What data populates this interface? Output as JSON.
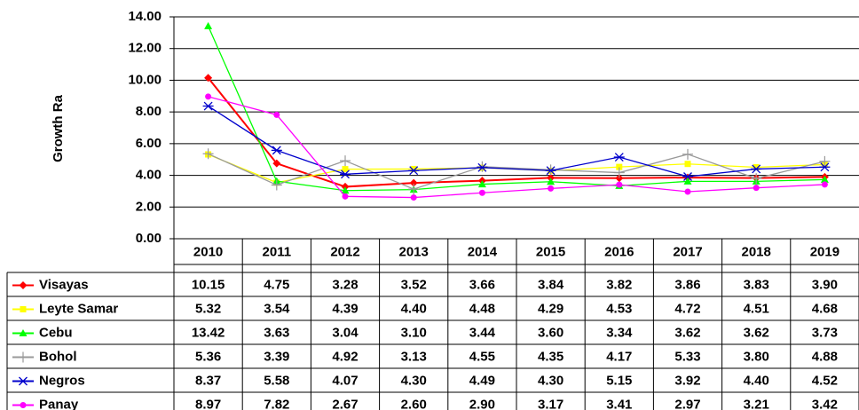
{
  "chart_data": {
    "type": "line",
    "y_label": "Growth Ra",
    "categories": [
      "2010",
      "2011",
      "2012",
      "2013",
      "2014",
      "2015",
      "2016",
      "2017",
      "2018",
      "2019"
    ],
    "ylim": [
      0,
      14
    ],
    "yticks": [
      {
        "value": 0,
        "label": "0.00"
      },
      {
        "value": 2,
        "label": "2.00"
      },
      {
        "value": 4,
        "label": "4.00"
      },
      {
        "value": 6,
        "label": "6.00"
      },
      {
        "value": 8,
        "label": "8.00"
      },
      {
        "value": 10,
        "label": "10.00"
      },
      {
        "value": 12,
        "label": "12.00"
      },
      {
        "value": 14,
        "label": "14.00"
      }
    ],
    "grid": true,
    "series": [
      {
        "name": "Visayas",
        "color": "#ff0000",
        "marker": "diamond",
        "values": [
          10.15,
          4.75,
          3.28,
          3.52,
          3.66,
          3.84,
          3.82,
          3.86,
          3.83,
          3.9
        ],
        "value_labels": [
          "10.15",
          "4.75",
          "3.28",
          "3.52",
          "3.66",
          "3.84",
          "3.82",
          "3.86",
          "3.83",
          "3.90"
        ]
      },
      {
        "name": "Leyte Samar",
        "color": "#ffff00",
        "marker": "square",
        "values": [
          5.32,
          3.54,
          4.39,
          4.4,
          4.48,
          4.29,
          4.53,
          4.72,
          4.51,
          4.68
        ],
        "value_labels": [
          "5.32",
          "3.54",
          "4.39",
          "4.40",
          "4.48",
          "4.29",
          "4.53",
          "4.72",
          "4.51",
          "4.68"
        ]
      },
      {
        "name": "Cebu",
        "color": "#00ff00",
        "marker": "triangle",
        "values": [
          13.42,
          3.63,
          3.04,
          3.1,
          3.44,
          3.6,
          3.34,
          3.62,
          3.62,
          3.73
        ],
        "value_labels": [
          "13.42",
          "3.63",
          "3.04",
          "3.10",
          "3.44",
          "3.60",
          "3.34",
          "3.62",
          "3.62",
          "3.73"
        ]
      },
      {
        "name": "Bohol",
        "color": "#999999",
        "marker": "plus",
        "values": [
          5.36,
          3.39,
          4.92,
          3.13,
          4.55,
          4.35,
          4.17,
          5.33,
          3.8,
          4.88
        ],
        "value_labels": [
          "5.36",
          "3.39",
          "4.92",
          "3.13",
          "4.55",
          "4.35",
          "4.17",
          "5.33",
          "3.80",
          "4.88"
        ]
      },
      {
        "name": "Negros",
        "color": "#0000cc",
        "marker": "star",
        "values": [
          8.37,
          5.58,
          4.07,
          4.3,
          4.49,
          4.3,
          5.15,
          3.92,
          4.4,
          4.52
        ],
        "value_labels": [
          "8.37",
          "5.58",
          "4.07",
          "4.30",
          "4.49",
          "4.30",
          "5.15",
          "3.92",
          "4.40",
          "4.52"
        ]
      },
      {
        "name": "Panay",
        "color": "#ff00ff",
        "marker": "circle",
        "values": [
          8.97,
          7.82,
          2.67,
          2.6,
          2.9,
          3.17,
          3.41,
          2.97,
          3.21,
          3.42
        ],
        "value_labels": [
          "8.97",
          "7.82",
          "2.67",
          "2.60",
          "2.90",
          "3.17",
          "3.41",
          "2.97",
          "3.21",
          "3.42"
        ]
      }
    ]
  }
}
